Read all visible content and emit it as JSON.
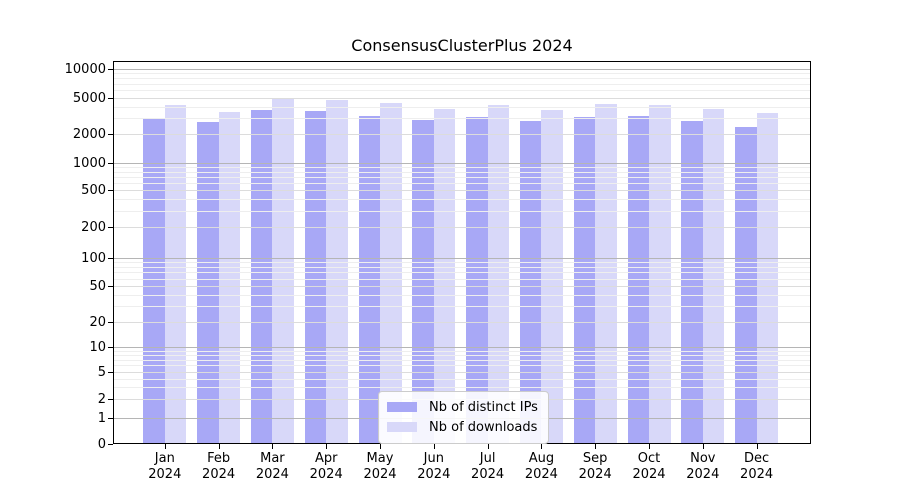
{
  "title": "ConsensusClusterPlus 2024",
  "chart_data": {
    "type": "bar",
    "title": "ConsensusClusterPlus 2024",
    "categories": [
      "Jan",
      "Feb",
      "Mar",
      "Apr",
      "May",
      "Jun",
      "Jul",
      "Aug",
      "Sep",
      "Oct",
      "Nov",
      "Dec"
    ],
    "category_year": "2024",
    "series": [
      {
        "name": "Nb of distinct IPs",
        "color": "#a8a8f6",
        "values": [
          2950,
          2690,
          3700,
          3590,
          3160,
          2860,
          3100,
          2780,
          3080,
          3160,
          2800,
          2370
        ]
      },
      {
        "name": "Nb of downloads",
        "color": "#d8d8f9",
        "values": [
          4150,
          3500,
          5000,
          4720,
          4430,
          3780,
          4180,
          3680,
          4290,
          4220,
          3780,
          3390
        ]
      }
    ],
    "xlabel": "",
    "ylabel": "",
    "yscale": "log",
    "ylim": [
      0,
      12000
    ],
    "y_ticks": [
      0,
      1,
      2,
      5,
      10,
      20,
      50,
      100,
      200,
      500,
      1000,
      2000,
      5000,
      10000
    ],
    "grid": "horizontal major+minor gridlines drawn over bars",
    "legend_position": "inside-bottom-center"
  },
  "legend": {
    "entries": [
      {
        "label": "Nb of distinct IPs",
        "color": "#a8a8f6"
      },
      {
        "label": "Nb of downloads",
        "color": "#d8d8f9"
      }
    ]
  }
}
